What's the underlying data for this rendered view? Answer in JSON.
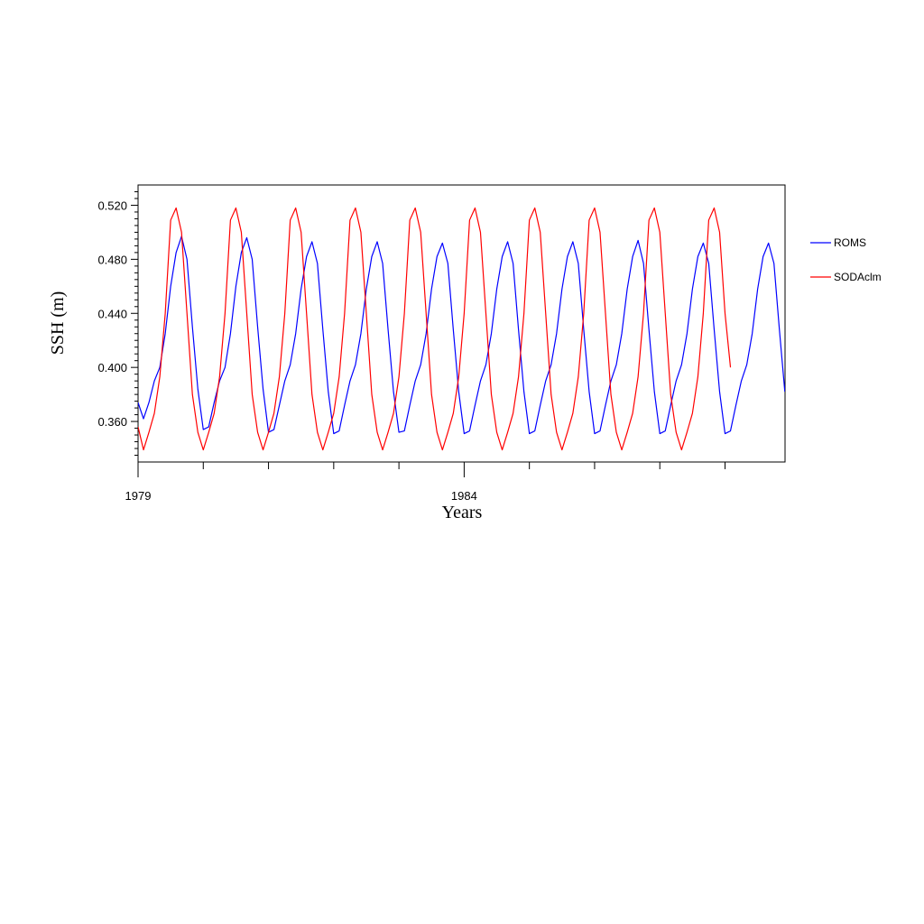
{
  "chart_data": {
    "type": "line",
    "xlabel": "Years",
    "ylabel": "SSH (m)",
    "x_start_label": "1979",
    "x_tick_labels": [
      {
        "label": "1979",
        "year": 1979
      },
      {
        "label": "1984",
        "year": 1984
      }
    ],
    "y_ticks": [
      {
        "label": "0.360",
        "value": 0.36
      },
      {
        "label": "0.400",
        "value": 0.4
      },
      {
        "label": "0.440",
        "value": 0.44
      },
      {
        "label": "0.480",
        "value": 0.48
      },
      {
        "label": "0.520",
        "value": 0.52
      }
    ],
    "xlim": [
      1979.0,
      1988.92
    ],
    "ylim": [
      0.33,
      0.535
    ],
    "grid": false,
    "legend_position": "right",
    "series": [
      {
        "name": "ROMS",
        "color": "#0000ff",
        "monthly_values": [
          0.374,
          0.362,
          0.374,
          0.39,
          0.4,
          0.425,
          0.46,
          0.485,
          0.497,
          0.48,
          0.43,
          0.384,
          0.354,
          0.356,
          0.374,
          0.39,
          0.4,
          0.425,
          0.46,
          0.485,
          0.496,
          0.48,
          0.43,
          0.384,
          0.352,
          0.354,
          0.372,
          0.39,
          0.402,
          0.425,
          0.458,
          0.482,
          0.493,
          0.477,
          0.428,
          0.382,
          0.351,
          0.353,
          0.372,
          0.39,
          0.402,
          0.425,
          0.458,
          0.482,
          0.493,
          0.477,
          0.428,
          0.382,
          0.352,
          0.353,
          0.372,
          0.39,
          0.402,
          0.425,
          0.458,
          0.482,
          0.492,
          0.477,
          0.428,
          0.382,
          0.351,
          0.353,
          0.372,
          0.39,
          0.402,
          0.425,
          0.458,
          0.482,
          0.493,
          0.477,
          0.428,
          0.382,
          0.351,
          0.353,
          0.372,
          0.39,
          0.402,
          0.425,
          0.458,
          0.482,
          0.493,
          0.477,
          0.428,
          0.382,
          0.351,
          0.353,
          0.372,
          0.39,
          0.402,
          0.425,
          0.458,
          0.482,
          0.494,
          0.477,
          0.428,
          0.382,
          0.351,
          0.353,
          0.372,
          0.39,
          0.402,
          0.425,
          0.458,
          0.482,
          0.492,
          0.477,
          0.428,
          0.382,
          0.351,
          0.353,
          0.372,
          0.39,
          0.402,
          0.425,
          0.458,
          0.482,
          0.492,
          0.477,
          0.428,
          0.382
        ]
      },
      {
        "name": "SODAclm",
        "color": "#ff0000",
        "monthly_values": [
          0.356,
          0.339,
          0.352,
          0.366,
          0.393,
          0.44,
          0.509,
          0.518,
          0.5,
          0.44,
          0.38,
          0.352,
          0.339,
          0.352,
          0.366,
          0.393,
          0.44,
          0.509,
          0.518,
          0.5,
          0.44,
          0.38,
          0.352,
          0.339,
          0.352,
          0.366,
          0.393,
          0.44,
          0.509,
          0.518,
          0.5,
          0.44,
          0.38,
          0.352,
          0.339,
          0.352,
          0.366,
          0.393,
          0.44,
          0.509,
          0.518,
          0.5,
          0.44,
          0.38,
          0.352,
          0.339,
          0.352,
          0.366,
          0.393,
          0.44,
          0.509,
          0.518,
          0.5,
          0.44,
          0.38,
          0.352,
          0.339,
          0.352,
          0.366,
          0.393,
          0.44,
          0.509,
          0.518,
          0.5,
          0.44,
          0.38,
          0.352,
          0.339,
          0.352,
          0.366,
          0.393,
          0.44,
          0.509,
          0.518,
          0.5,
          0.44,
          0.38,
          0.352,
          0.339,
          0.352,
          0.366,
          0.393,
          0.44,
          0.509,
          0.518,
          0.5,
          0.44,
          0.38,
          0.352,
          0.339,
          0.352,
          0.366,
          0.393,
          0.44,
          0.509,
          0.518,
          0.5,
          0.44,
          0.38,
          0.352,
          0.339,
          0.352,
          0.366,
          0.393,
          0.44,
          0.509,
          0.518,
          0.5,
          0.44,
          0.4
        ]
      }
    ]
  }
}
